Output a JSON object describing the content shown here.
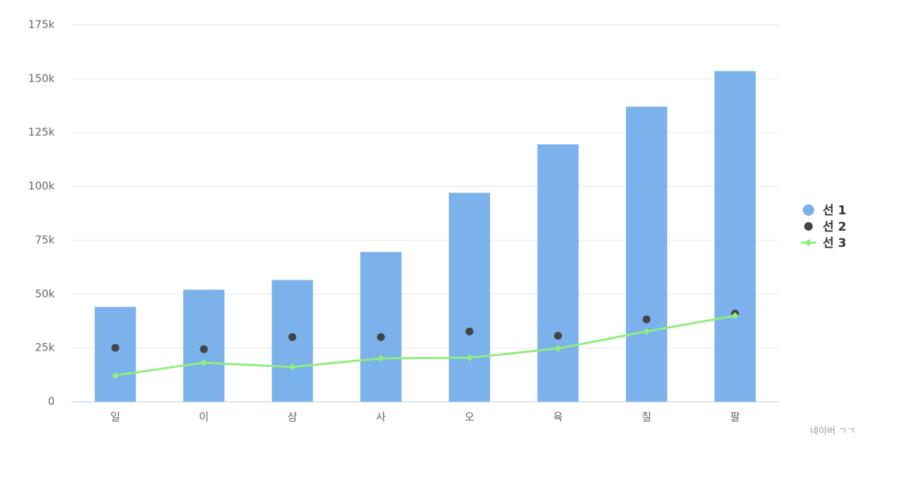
{
  "chart_data": {
    "type": "bar",
    "categories": [
      "일",
      "이",
      "삼",
      "사",
      "오",
      "육",
      "칠",
      "팔"
    ],
    "series": [
      {
        "name": "선 1",
        "type": "bar",
        "color": "#7cb2eb",
        "values": [
          44000,
          52000,
          56500,
          69500,
          97000,
          119500,
          137000,
          153500
        ]
      },
      {
        "name": "선 2",
        "type": "scatter",
        "color": "#434348",
        "values": [
          25000,
          24400,
          30000,
          30000,
          32600,
          30600,
          38200,
          40900
        ]
      },
      {
        "name": "선 3",
        "type": "line",
        "color": "#90ed7d",
        "values": [
          12200,
          18100,
          16100,
          20100,
          20400,
          24700,
          32600,
          39900
        ]
      }
    ],
    "ylim": [
      0,
      175000
    ],
    "yticks": [
      0,
      {
        "value": 25000,
        "label": "25k"
      },
      {
        "value": 50000,
        "label": "50k"
      },
      {
        "value": 75000,
        "label": "75k"
      },
      {
        "value": 100000,
        "label": "100k"
      },
      {
        "value": 125000,
        "label": "125k"
      },
      {
        "value": 150000,
        "label": "150k"
      },
      {
        "value": 175000,
        "label": "175k"
      }
    ],
    "grid": true,
    "legend": "right",
    "credits": "네이버 ㄱㄱ"
  }
}
